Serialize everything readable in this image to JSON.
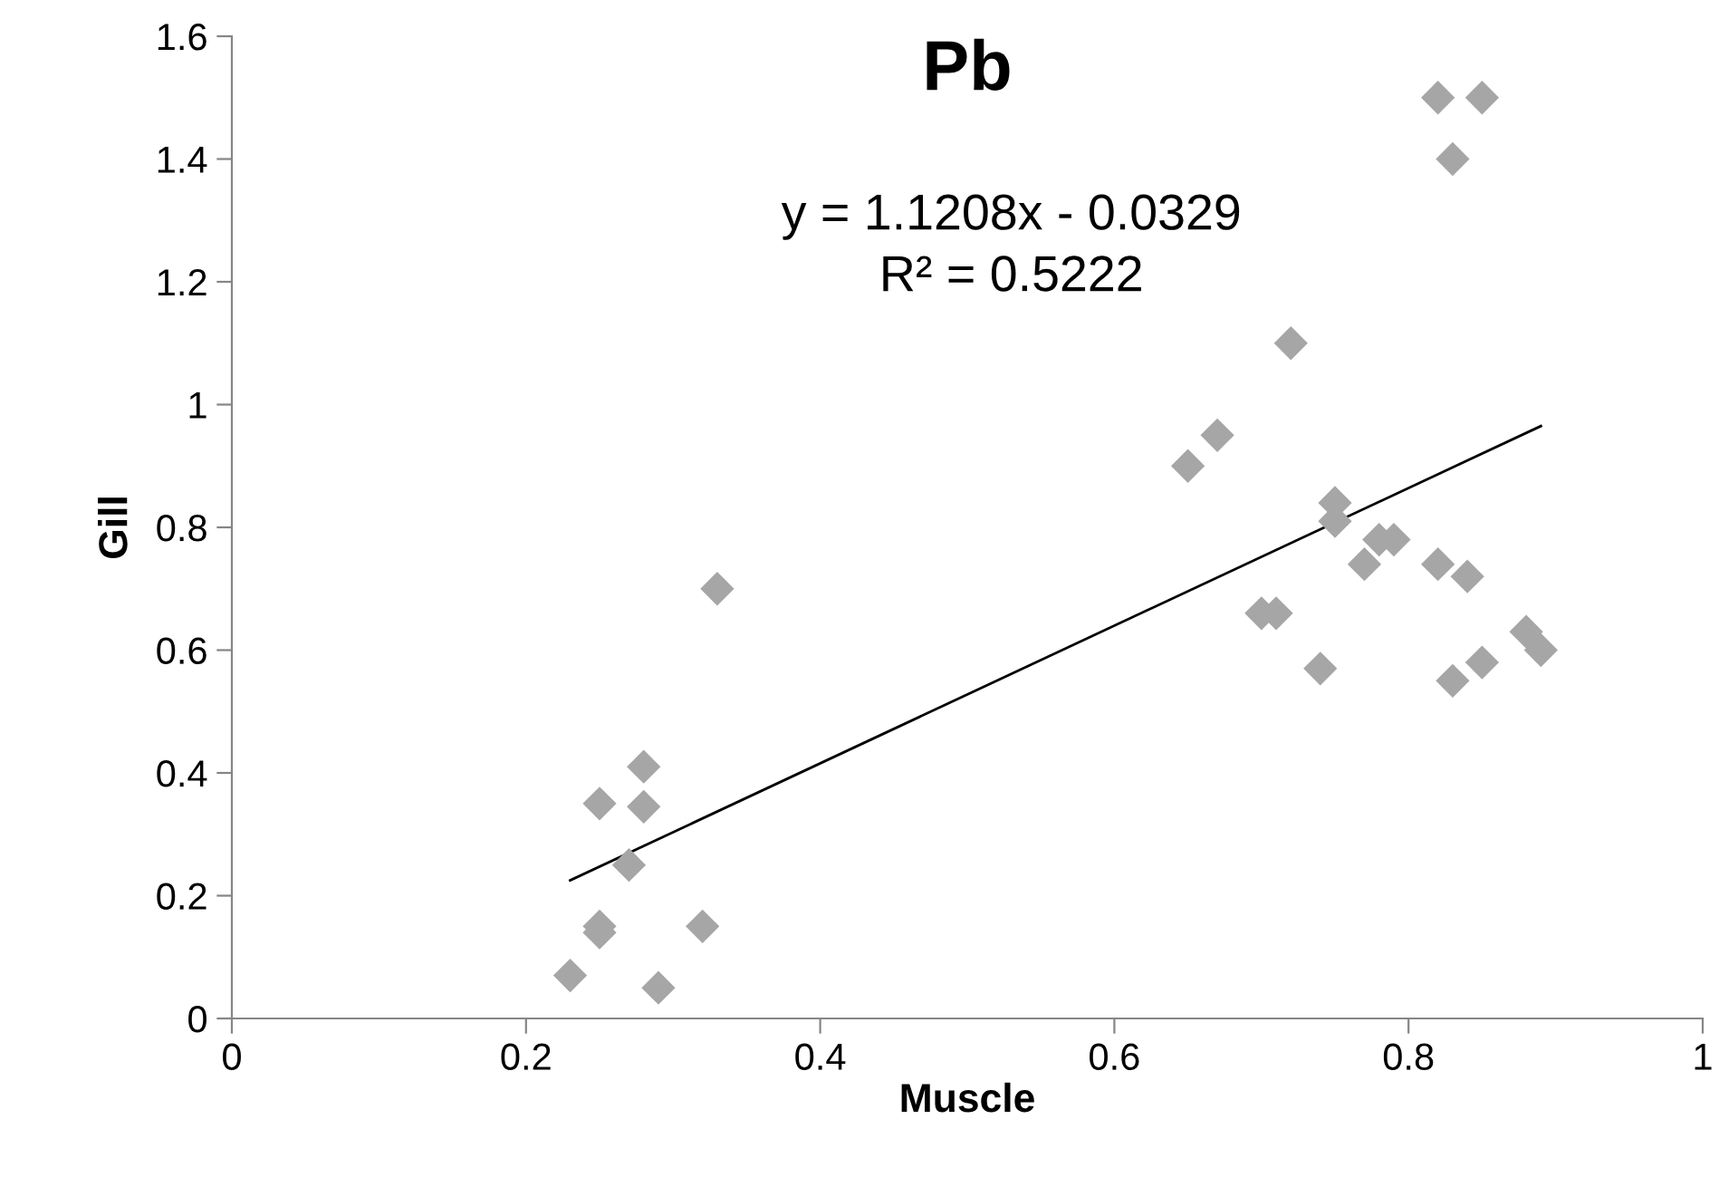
{
  "chart_data": {
    "type": "scatter",
    "title": "Pb",
    "xlabel": "Muscle",
    "ylabel": "Gill",
    "annotations": [
      "y = 1.1208x - 0.0329\nR² = 0.5222"
    ],
    "xlim": [
      0,
      1
    ],
    "xticks": [
      0,
      0.2,
      0.4,
      0.6,
      0.8,
      1
    ],
    "ylim": [
      0,
      1.6
    ],
    "yticks": [
      0,
      0.2,
      0.4,
      0.6,
      0.8,
      1,
      1.2,
      1.4,
      1.6
    ],
    "grid": false,
    "legend": false,
    "marker": "diamond",
    "series": [
      {
        "color": "#a6a6a6",
        "x": [
          0.23,
          0.25,
          0.25,
          0.25,
          0.27,
          0.28,
          0.28,
          0.29,
          0.32,
          0.33,
          0.65,
          0.67,
          0.7,
          0.71,
          0.72,
          0.74,
          0.75,
          0.75,
          0.77,
          0.78,
          0.79,
          0.82,
          0.82,
          0.83,
          0.83,
          0.84,
          0.85,
          0.85,
          0.88,
          0.89
        ],
        "values": [
          0.07,
          0.35,
          0.15,
          0.14,
          0.25,
          0.41,
          0.345,
          0.05,
          0.15,
          0.7,
          0.9,
          0.95,
          0.66,
          0.66,
          1.1,
          0.57,
          0.84,
          0.81,
          0.74,
          0.78,
          0.78,
          1.5,
          0.74,
          1.4,
          0.55,
          0.72,
          1.5,
          0.58,
          0.63,
          0.6
        ]
      },
      {
        "type": "line",
        "color": "#000000",
        "marker": "none",
        "line_style": "solid",
        "x": [
          0.23,
          0.89
        ],
        "values": [
          0.225,
          0.965
        ]
      }
    ]
  }
}
